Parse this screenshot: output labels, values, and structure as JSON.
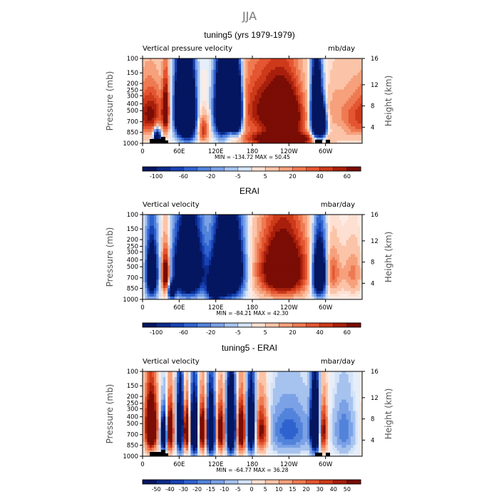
{
  "figure": {
    "title": "JJA"
  },
  "colors": {
    "title_gray": "#777777",
    "ocean_fill": "#000000",
    "palette_pos": [
      "#fde0d2",
      "#fbc4a8",
      "#f6a07c",
      "#ee7a52",
      "#e45531",
      "#cc3a1a",
      "#a81f0c",
      "#7a0d05"
    ],
    "palette_neg": [
      "#d4e3f7",
      "#a6c2ef",
      "#7ba1e6",
      "#5283db",
      "#2f62cf",
      "#1842b4",
      "#0c2a8a",
      "#051660"
    ]
  },
  "chart_data": [
    {
      "type": "heatmap",
      "id": "model",
      "title": "tuning5 (yrs 1979-1979)",
      "left_label": "Vertical pressure velocity",
      "right_label": "mb/day",
      "ylabel": "Pressure (mb)",
      "ylabel_right": "Height (km)",
      "x_ticks": [
        "0",
        "60E",
        "120E",
        "180",
        "120W",
        "60W"
      ],
      "y_ticks": [
        "100",
        "150",
        "200",
        "250",
        "300",
        "400",
        "500",
        "700",
        "850",
        "1000"
      ],
      "y2_ticks": [
        "16",
        "12",
        "8",
        "4"
      ],
      "stats": "MIN = -134.72   MAX =  50.45",
      "colorbar_labels": [
        "-100",
        "-60",
        "-20",
        "-5",
        "5",
        "20",
        "40",
        "60"
      ],
      "colorbar_levels": [
        "-120",
        "-100",
        "-80",
        "-60",
        "-40",
        "-20",
        "-10",
        "-5",
        "0",
        "5",
        "10",
        "20",
        "30",
        "40",
        "50",
        "60"
      ],
      "scale": 30,
      "terrain": true,
      "regions": [
        {
          "lon": 15,
          "p": 450,
          "amp": 25,
          "wx": 14,
          "wp": 300
        },
        {
          "lon": 38,
          "p": 400,
          "amp": 30,
          "wx": 4,
          "wp": 300
        },
        {
          "lon": 24,
          "p": 850,
          "amp": -45,
          "wx": 4,
          "wp": 200
        },
        {
          "lon": 65,
          "p": 400,
          "amp": -85,
          "wx": 8,
          "wp": 360
        },
        {
          "lon": 78,
          "p": 450,
          "amp": -55,
          "wx": 7,
          "wp": 380
        },
        {
          "lon": 100,
          "p": 700,
          "amp": 20,
          "wx": 6,
          "wp": 250
        },
        {
          "lon": 130,
          "p": 400,
          "amp": -55,
          "wx": 9,
          "wp": 380
        },
        {
          "lon": 145,
          "p": 350,
          "amp": -110,
          "wx": 9,
          "wp": 260
        },
        {
          "lon": 155,
          "p": 450,
          "amp": -50,
          "wx": 6,
          "wp": 300
        },
        {
          "lon": 200,
          "p": 400,
          "amp": 24,
          "wx": 35,
          "wp": 400
        },
        {
          "lon": 235,
          "p": 500,
          "amp": 34,
          "wx": 20,
          "wp": 350
        },
        {
          "lon": 230,
          "p": 900,
          "amp": 38,
          "wx": 40,
          "wp": 150
        },
        {
          "lon": 285,
          "p": 450,
          "amp": -75,
          "wx": 6,
          "wp": 380
        },
        {
          "lon": 295,
          "p": 600,
          "amp": -45,
          "wx": 5,
          "wp": 260
        },
        {
          "lon": 315,
          "p": 400,
          "amp": 8,
          "wx": 12,
          "wp": 300
        },
        {
          "lon": 345,
          "p": 500,
          "amp": 14,
          "wx": 14,
          "wp": 350
        }
      ]
    },
    {
      "type": "heatmap",
      "id": "obs",
      "title": "ERAI",
      "left_label": "Vertical velocity",
      "right_label": "mbar/day",
      "ylabel": "Pressure (mb)",
      "ylabel_right": "Height (km)",
      "x_ticks": [
        "0",
        "60E",
        "120E",
        "180",
        "120W",
        "60W"
      ],
      "y_ticks": [
        "100",
        "150",
        "200",
        "250",
        "300",
        "400",
        "500",
        "700",
        "850",
        "1000"
      ],
      "y2_ticks": [
        "16",
        "12",
        "8",
        "4"
      ],
      "stats": "MIN = -84.21   MAX =  42.30",
      "colorbar_labels": [
        "-100",
        "-60",
        "-20",
        "-5",
        "5",
        "20",
        "40",
        "60"
      ],
      "colorbar_levels": [
        "-120",
        "-100",
        "-80",
        "-60",
        "-40",
        "-20",
        "-10",
        "-5",
        "0",
        "5",
        "10",
        "20",
        "30",
        "40",
        "50",
        "60"
      ],
      "scale": 26,
      "terrain": false,
      "regions": [
        {
          "lon": 15,
          "p": 500,
          "amp": -40,
          "wx": 7,
          "wp": 380
        },
        {
          "lon": 38,
          "p": 500,
          "amp": 32,
          "wx": 5,
          "wp": 300
        },
        {
          "lon": 48,
          "p": 800,
          "amp": -40,
          "wx": 4,
          "wp": 160
        },
        {
          "lon": 75,
          "p": 450,
          "amp": -58,
          "wx": 16,
          "wp": 380
        },
        {
          "lon": 140,
          "p": 450,
          "amp": -70,
          "wx": 16,
          "wp": 400
        },
        {
          "lon": 118,
          "p": 750,
          "amp": -38,
          "wx": 8,
          "wp": 250
        },
        {
          "lon": 230,
          "p": 450,
          "amp": 38,
          "wx": 28,
          "wp": 400
        },
        {
          "lon": 290,
          "p": 500,
          "amp": -55,
          "wx": 8,
          "wp": 350
        },
        {
          "lon": 310,
          "p": 500,
          "amp": 14,
          "wx": 10,
          "wp": 300
        },
        {
          "lon": 345,
          "p": 500,
          "amp": 10,
          "wx": 12,
          "wp": 300
        }
      ]
    },
    {
      "type": "heatmap",
      "id": "diff",
      "title": "tuning5 - ERAI",
      "left_label": "Vertical velocity",
      "right_label": "mbar/day",
      "ylabel": "Pressure (mb)",
      "ylabel_right": "Height (km)",
      "x_ticks": [
        "0",
        "60E",
        "120E",
        "180",
        "120W",
        "60W"
      ],
      "y_ticks": [
        "100",
        "150",
        "200",
        "250",
        "300",
        "400",
        "500",
        "700",
        "850",
        "1000"
      ],
      "y2_ticks": [
        "16",
        "12",
        "8",
        "4"
      ],
      "stats": "MIN = -64.77   MAX =  36.28",
      "colorbar_labels": [
        "-50",
        "-40",
        "-30",
        "-20",
        "-15",
        "-10",
        "-5",
        "0",
        "5",
        "10",
        "15",
        "20",
        "30",
        "40",
        "50"
      ],
      "colorbar_levels": [
        "-60",
        "-50",
        "-40",
        "-30",
        "-20",
        "-15",
        "-10",
        "-5",
        "0",
        "5",
        "10",
        "15",
        "20",
        "30",
        "40",
        "50"
      ],
      "scale": 22,
      "terrain": true,
      "regions": [
        {
          "lon": 14,
          "p": 450,
          "amp": 35,
          "wx": 7,
          "wp": 350
        },
        {
          "lon": 35,
          "p": 550,
          "amp": -35,
          "wx": 4,
          "wp": 280
        },
        {
          "lon": 45,
          "p": 500,
          "amp": 30,
          "wx": 4,
          "wp": 320
        },
        {
          "lon": 62,
          "p": 450,
          "amp": -40,
          "wx": 4,
          "wp": 380
        },
        {
          "lon": 72,
          "p": 500,
          "amp": 32,
          "wx": 4,
          "wp": 300
        },
        {
          "lon": 85,
          "p": 500,
          "amp": -40,
          "wx": 5,
          "wp": 380
        },
        {
          "lon": 98,
          "p": 500,
          "amp": 30,
          "wx": 5,
          "wp": 320
        },
        {
          "lon": 112,
          "p": 500,
          "amp": -40,
          "wx": 5,
          "wp": 380
        },
        {
          "lon": 128,
          "p": 500,
          "amp": 25,
          "wx": 5,
          "wp": 320
        },
        {
          "lon": 145,
          "p": 450,
          "amp": -50,
          "wx": 5,
          "wp": 380
        },
        {
          "lon": 162,
          "p": 500,
          "amp": 30,
          "wx": 5,
          "wp": 320
        },
        {
          "lon": 178,
          "p": 450,
          "amp": -38,
          "wx": 5,
          "wp": 380
        },
        {
          "lon": 195,
          "p": 500,
          "amp": 22,
          "wx": 8,
          "wp": 320
        },
        {
          "lon": 240,
          "p": 500,
          "amp": -12,
          "wx": 25,
          "wp": 350
        },
        {
          "lon": 283,
          "p": 450,
          "amp": -45,
          "wx": 5,
          "wp": 380
        },
        {
          "lon": 296,
          "p": 500,
          "amp": 22,
          "wx": 5,
          "wp": 320
        },
        {
          "lon": 330,
          "p": 500,
          "amp": -10,
          "wx": 12,
          "wp": 350
        }
      ]
    }
  ]
}
